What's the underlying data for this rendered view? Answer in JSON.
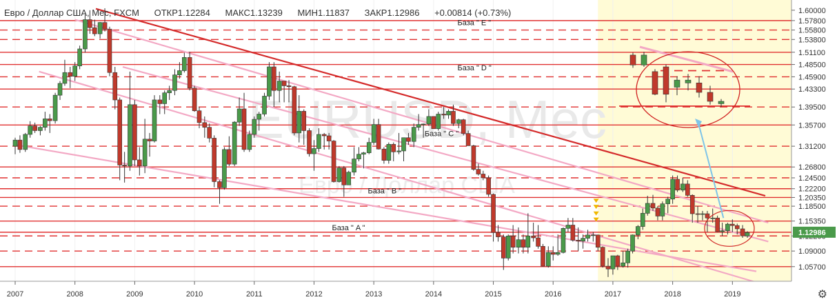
{
  "header": {
    "title": "Евро / Доллар США, Мес, FXCM",
    "open": "ОТКР1.12284",
    "high": "МАКС1.13239",
    "low": "МИН1.11837",
    "close": "ЗАКР1.12986",
    "change": "+0.00814 (+0.73%)"
  },
  "watermark": {
    "main": "EURUSD, Mec",
    "sub": "Евро / Доллар США"
  },
  "colors": {
    "up": "#4a9a4a",
    "down": "#c0392b",
    "level": "#e03030",
    "trend": "#d42a2a",
    "channel": "#f3a8c4",
    "highlight": "#fffbd6",
    "last_price_bg": "#4a9a4a",
    "arrow": "#7ec4e8"
  },
  "chart_data": {
    "type": "candlestick",
    "x_ticks": [
      "2007",
      "2008",
      "2009",
      "2010",
      "2011",
      "2012",
      "2013",
      "2014",
      "2015",
      "2016",
      "2017",
      "2018",
      "2019"
    ],
    "y_ticks": [
      "1.60000",
      "1.57800",
      "1.55800",
      "1.53800",
      "1.51100",
      "1.48500",
      "1.45900",
      "1.43300",
      "1.39500",
      "1.35700",
      "1.31200",
      "1.26800",
      "1.24500",
      "1.22200",
      "1.20350",
      "1.18500",
      "1.15350",
      "1.12200",
      "1.09000",
      "1.05700"
    ],
    "last_price": "1.12986",
    "levels_solid": [
      1.578,
      1.511,
      1.485,
      1.433,
      1.357,
      1.268,
      1.222,
      1.2035,
      1.1535,
      1.12986,
      1.057
    ],
    "levels_dashed": [
      1.558,
      1.538,
      1.459,
      1.395,
      1.312,
      1.245,
      1.185,
      1.122,
      1.09
    ],
    "annotations": [
      {
        "text": "База  \" E \"",
        "date": 2014.4,
        "price": 1.568
      },
      {
        "text": "База  \" D \"",
        "date": 2014.4,
        "price": 1.473
      },
      {
        "text": "База  \" C \"",
        "date": 2013.85,
        "price": 1.333
      },
      {
        "text": "База  \" B \"",
        "date": 2012.9,
        "price": 1.212
      },
      {
        "text": "База  \" A \"",
        "date": 2012.3,
        "price": 1.134
      }
    ],
    "candles": [
      [
        2007.0,
        1.312,
        1.33,
        1.295,
        1.325
      ],
      [
        2007.08,
        1.325,
        1.335,
        1.298,
        1.305
      ],
      [
        2007.17,
        1.305,
        1.34,
        1.3,
        1.337
      ],
      [
        2007.25,
        1.337,
        1.365,
        1.33,
        1.355
      ],
      [
        2007.33,
        1.355,
        1.362,
        1.34,
        1.345
      ],
      [
        2007.42,
        1.345,
        1.355,
        1.335,
        1.352
      ],
      [
        2007.5,
        1.352,
        1.385,
        1.345,
        1.37
      ],
      [
        2007.58,
        1.37,
        1.38,
        1.34,
        1.366
      ],
      [
        2007.67,
        1.366,
        1.425,
        1.36,
        1.42
      ],
      [
        2007.75,
        1.42,
        1.45,
        1.41,
        1.445
      ],
      [
        2007.83,
        1.445,
        1.495,
        1.44,
        1.468
      ],
      [
        2007.92,
        1.468,
        1.48,
        1.435,
        1.46
      ],
      [
        2008.0,
        1.46,
        1.49,
        1.45,
        1.482
      ],
      [
        2008.08,
        1.482,
        1.525,
        1.475,
        1.518
      ],
      [
        2008.17,
        1.518,
        1.59,
        1.51,
        1.58
      ],
      [
        2008.25,
        1.58,
        1.6,
        1.55,
        1.563
      ],
      [
        2008.33,
        1.563,
        1.58,
        1.545,
        1.55
      ],
      [
        2008.42,
        1.55,
        1.575,
        1.54,
        1.574
      ],
      [
        2008.5,
        1.574,
        1.604,
        1.555,
        1.56
      ],
      [
        2008.58,
        1.56,
        1.565,
        1.46,
        1.468
      ],
      [
        2008.67,
        1.468,
        1.48,
        1.39,
        1.41
      ],
      [
        2008.75,
        1.41,
        1.415,
        1.24,
        1.272
      ],
      [
        2008.83,
        1.272,
        1.3,
        1.235,
        1.27
      ],
      [
        2008.92,
        1.27,
        1.47,
        1.26,
        1.4
      ],
      [
        2009.0,
        1.4,
        1.41,
        1.27,
        1.283
      ],
      [
        2009.08,
        1.283,
        1.31,
        1.25,
        1.27
      ],
      [
        2009.17,
        1.27,
        1.37,
        1.255,
        1.327
      ],
      [
        2009.25,
        1.327,
        1.34,
        1.29,
        1.323
      ],
      [
        2009.33,
        1.323,
        1.42,
        1.32,
        1.41
      ],
      [
        2009.42,
        1.41,
        1.42,
        1.38,
        1.402
      ],
      [
        2009.5,
        1.402,
        1.43,
        1.38,
        1.425
      ],
      [
        2009.58,
        1.425,
        1.44,
        1.41,
        1.43
      ],
      [
        2009.67,
        1.43,
        1.475,
        1.42,
        1.463
      ],
      [
        2009.75,
        1.463,
        1.49,
        1.455,
        1.472
      ],
      [
        2009.83,
        1.472,
        1.51,
        1.468,
        1.5
      ],
      [
        2009.92,
        1.5,
        1.512,
        1.43,
        1.435
      ],
      [
        2010.0,
        1.435,
        1.44,
        1.385,
        1.387
      ],
      [
        2010.08,
        1.387,
        1.395,
        1.35,
        1.362
      ],
      [
        2010.17,
        1.362,
        1.375,
        1.33,
        1.352
      ],
      [
        2010.25,
        1.352,
        1.36,
        1.32,
        1.329
      ],
      [
        2010.33,
        1.329,
        1.335,
        1.225,
        1.237
      ],
      [
        2010.42,
        1.237,
        1.24,
        1.19,
        1.224
      ],
      [
        2010.5,
        1.224,
        1.31,
        1.22,
        1.305
      ],
      [
        2010.58,
        1.305,
        1.333,
        1.27,
        1.274
      ],
      [
        2010.67,
        1.274,
        1.365,
        1.27,
        1.363
      ],
      [
        2010.75,
        1.363,
        1.415,
        1.355,
        1.391
      ],
      [
        2010.83,
        1.391,
        1.425,
        1.3,
        1.305
      ],
      [
        2010.92,
        1.305,
        1.345,
        1.3,
        1.337
      ],
      [
        2011.0,
        1.337,
        1.375,
        1.33,
        1.369
      ],
      [
        2011.08,
        1.369,
        1.385,
        1.345,
        1.38
      ],
      [
        2011.17,
        1.38,
        1.425,
        1.375,
        1.418
      ],
      [
        2011.25,
        1.418,
        1.49,
        1.41,
        1.48
      ],
      [
        2011.33,
        1.48,
        1.49,
        1.395,
        1.43
      ],
      [
        2011.42,
        1.43,
        1.47,
        1.405,
        1.45
      ],
      [
        2011.5,
        1.45,
        1.45,
        1.405,
        1.44
      ],
      [
        2011.58,
        1.44,
        1.452,
        1.405,
        1.438
      ],
      [
        2011.67,
        1.438,
        1.44,
        1.335,
        1.34
      ],
      [
        2011.75,
        1.34,
        1.42,
        1.32,
        1.386
      ],
      [
        2011.83,
        1.386,
        1.39,
        1.315,
        1.345
      ],
      [
        2011.92,
        1.345,
        1.35,
        1.29,
        1.296
      ],
      [
        2012.0,
        1.296,
        1.325,
        1.26,
        1.307
      ],
      [
        2012.08,
        1.307,
        1.35,
        1.3,
        1.337
      ],
      [
        2012.17,
        1.337,
        1.34,
        1.305,
        1.334
      ],
      [
        2012.25,
        1.334,
        1.34,
        1.305,
        1.323
      ],
      [
        2012.33,
        1.323,
        1.325,
        1.235,
        1.237
      ],
      [
        2012.42,
        1.237,
        1.27,
        1.235,
        1.266
      ],
      [
        2012.5,
        1.266,
        1.27,
        1.205,
        1.23
      ],
      [
        2012.58,
        1.23,
        1.26,
        1.23,
        1.257
      ],
      [
        2012.67,
        1.257,
        1.31,
        1.25,
        1.285
      ],
      [
        2012.75,
        1.285,
        1.31,
        1.28,
        1.295
      ],
      [
        2012.83,
        1.295,
        1.3,
        1.265,
        1.298
      ],
      [
        2012.92,
        1.298,
        1.33,
        1.295,
        1.32
      ],
      [
        2013.0,
        1.32,
        1.37,
        1.315,
        1.358
      ],
      [
        2013.08,
        1.358,
        1.37,
        1.305,
        1.306
      ],
      [
        2013.17,
        1.306,
        1.31,
        1.275,
        1.282
      ],
      [
        2013.25,
        1.282,
        1.32,
        1.275,
        1.316
      ],
      [
        2013.33,
        1.316,
        1.32,
        1.28,
        1.3
      ],
      [
        2013.42,
        1.3,
        1.34,
        1.295,
        1.302
      ],
      [
        2013.5,
        1.302,
        1.33,
        1.28,
        1.33
      ],
      [
        2013.58,
        1.33,
        1.34,
        1.315,
        1.322
      ],
      [
        2013.67,
        1.322,
        1.36,
        1.31,
        1.352
      ],
      [
        2013.75,
        1.352,
        1.38,
        1.345,
        1.358
      ],
      [
        2013.83,
        1.358,
        1.36,
        1.33,
        1.359
      ],
      [
        2013.92,
        1.359,
        1.39,
        1.355,
        1.375
      ],
      [
        2014.0,
        1.375,
        1.375,
        1.35,
        1.349
      ],
      [
        2014.08,
        1.349,
        1.385,
        1.345,
        1.38
      ],
      [
        2014.17,
        1.38,
        1.395,
        1.37,
        1.378
      ],
      [
        2014.25,
        1.378,
        1.39,
        1.37,
        1.386
      ],
      [
        2014.33,
        1.386,
        1.4,
        1.355,
        1.36
      ],
      [
        2014.42,
        1.36,
        1.37,
        1.35,
        1.368
      ],
      [
        2014.5,
        1.368,
        1.37,
        1.335,
        1.339
      ],
      [
        2014.58,
        1.339,
        1.345,
        1.315,
        1.313
      ],
      [
        2014.67,
        1.313,
        1.315,
        1.26,
        1.263
      ],
      [
        2014.75,
        1.263,
        1.275,
        1.25,
        1.253
      ],
      [
        2014.83,
        1.253,
        1.26,
        1.24,
        1.245
      ],
      [
        2014.92,
        1.245,
        1.25,
        1.205,
        1.21
      ],
      [
        2015.0,
        1.21,
        1.212,
        1.11,
        1.129
      ],
      [
        2015.08,
        1.129,
        1.145,
        1.11,
        1.12
      ],
      [
        2015.17,
        1.12,
        1.125,
        1.05,
        1.075
      ],
      [
        2015.25,
        1.075,
        1.125,
        1.07,
        1.122
      ],
      [
        2015.33,
        1.122,
        1.145,
        1.085,
        1.098
      ],
      [
        2015.42,
        1.098,
        1.14,
        1.085,
        1.114
      ],
      [
        2015.5,
        1.114,
        1.125,
        1.085,
        1.098
      ],
      [
        2015.58,
        1.098,
        1.17,
        1.085,
        1.122
      ],
      [
        2015.67,
        1.122,
        1.15,
        1.11,
        1.118
      ],
      [
        2015.75,
        1.118,
        1.145,
        1.095,
        1.1
      ],
      [
        2015.83,
        1.1,
        1.105,
        1.057,
        1.058
      ],
      [
        2015.92,
        1.058,
        1.1,
        1.055,
        1.087
      ],
      [
        2016.0,
        1.087,
        1.1,
        1.07,
        1.083
      ],
      [
        2016.08,
        1.083,
        1.125,
        1.08,
        1.087
      ],
      [
        2016.17,
        1.087,
        1.14,
        1.085,
        1.138
      ],
      [
        2016.25,
        1.138,
        1.16,
        1.13,
        1.145
      ],
      [
        2016.33,
        1.145,
        1.16,
        1.11,
        1.113
      ],
      [
        2016.42,
        1.113,
        1.14,
        1.09,
        1.111
      ],
      [
        2016.5,
        1.111,
        1.125,
        1.095,
        1.117
      ],
      [
        2016.58,
        1.117,
        1.135,
        1.11,
        1.124
      ],
      [
        2016.67,
        1.124,
        1.13,
        1.11,
        1.124
      ],
      [
        2016.75,
        1.124,
        1.125,
        1.09,
        1.098
      ],
      [
        2016.83,
        1.098,
        1.1,
        1.055,
        1.058
      ],
      [
        2016.92,
        1.058,
        1.075,
        1.035,
        1.052
      ],
      [
        2017.0,
        1.052,
        1.08,
        1.04,
        1.08
      ],
      [
        2017.08,
        1.08,
        1.082,
        1.05,
        1.058
      ],
      [
        2017.17,
        1.058,
        1.09,
        1.055,
        1.065
      ],
      [
        2017.25,
        1.065,
        1.095,
        1.055,
        1.09
      ],
      [
        2017.33,
        1.09,
        1.125,
        1.085,
        1.124
      ],
      [
        2017.42,
        1.124,
        1.145,
        1.115,
        1.142
      ],
      [
        2017.5,
        1.142,
        1.18,
        1.135,
        1.17
      ],
      [
        2017.58,
        1.17,
        1.207,
        1.165,
        1.191
      ],
      [
        2017.67,
        1.191,
        1.209,
        1.175,
        1.181
      ],
      [
        2017.75,
        1.181,
        1.185,
        1.155,
        1.164
      ],
      [
        2017.83,
        1.164,
        1.195,
        1.155,
        1.19
      ],
      [
        2017.92,
        1.19,
        1.205,
        1.17,
        1.2
      ],
      [
        2018.0,
        1.2,
        1.25,
        1.19,
        1.242
      ],
      [
        2018.08,
        1.242,
        1.25,
        1.215,
        1.219
      ],
      [
        2018.17,
        1.219,
        1.245,
        1.215,
        1.232
      ],
      [
        2018.25,
        1.232,
        1.24,
        1.205,
        1.208
      ],
      [
        2018.33,
        1.208,
        1.21,
        1.15,
        1.169
      ],
      [
        2018.42,
        1.169,
        1.185,
        1.15,
        1.168
      ],
      [
        2018.5,
        1.168,
        1.175,
        1.155,
        1.169
      ],
      [
        2018.58,
        1.169,
        1.175,
        1.13,
        1.16
      ],
      [
        2018.67,
        1.16,
        1.18,
        1.15,
        1.16
      ],
      [
        2018.75,
        1.16,
        1.165,
        1.13,
        1.131
      ],
      [
        2018.83,
        1.131,
        1.15,
        1.122,
        1.133
      ],
      [
        2018.92,
        1.133,
        1.15,
        1.125,
        1.147
      ],
      [
        2019.0,
        1.147,
        1.157,
        1.13,
        1.144
      ],
      [
        2019.08,
        1.144,
        1.148,
        1.125,
        1.137
      ],
      [
        2019.17,
        1.137,
        1.145,
        1.118,
        1.122
      ],
      [
        2019.25,
        1.122,
        1.132,
        1.118,
        1.129
      ]
    ]
  }
}
